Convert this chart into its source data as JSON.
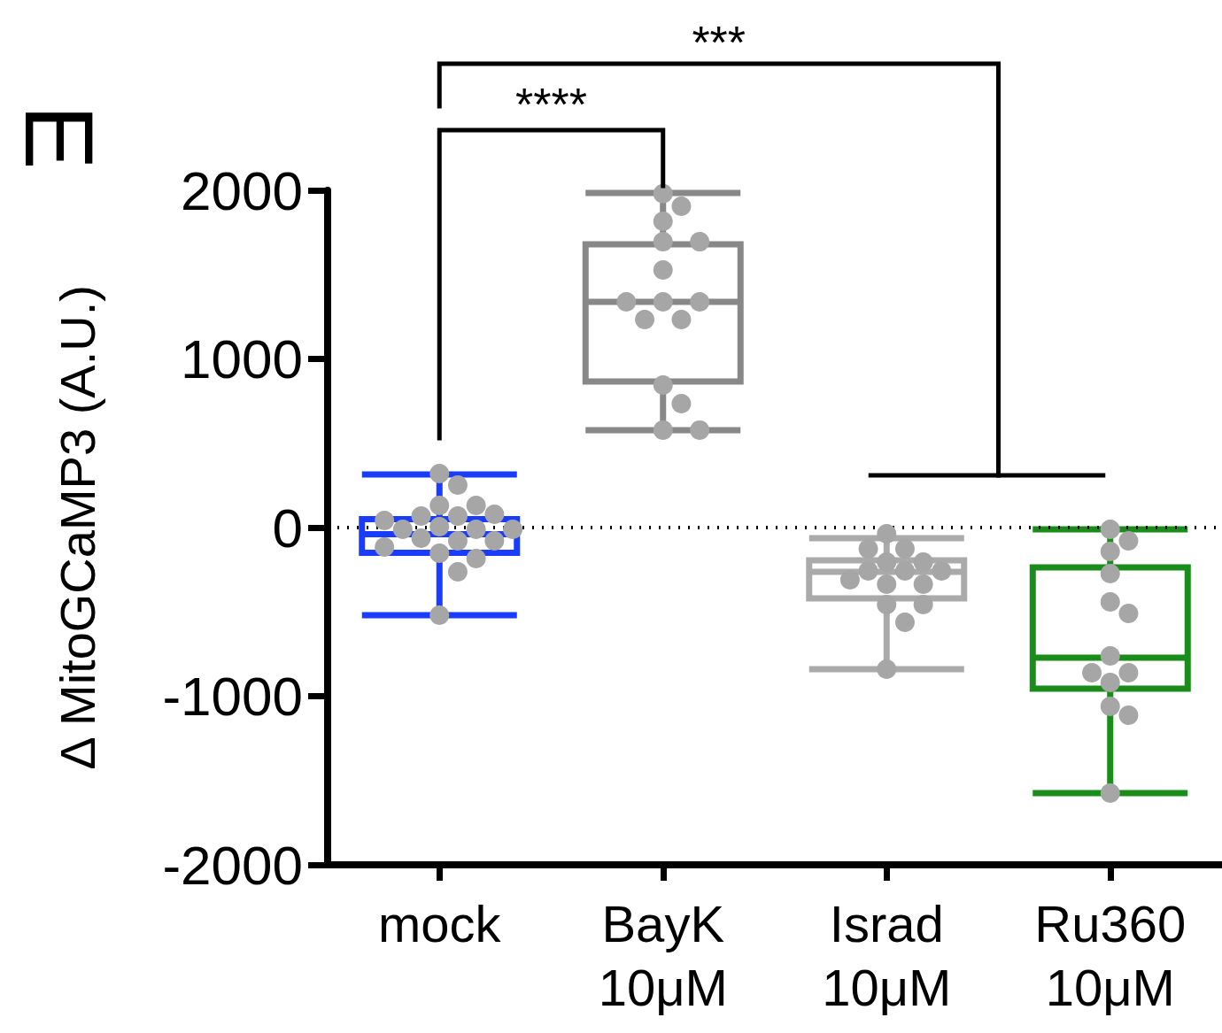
{
  "chart_data": {
    "type": "box",
    "ylabel": "Δ MitoGCaMP3 (A.U.)",
    "categories": [
      "mock",
      "BayK\n10μM",
      "Israd\n10μM",
      "Ru360\n10μM"
    ],
    "ylim": [
      -2000,
      2000
    ],
    "yticks": [
      -2000,
      -1000,
      0,
      1000,
      2000
    ],
    "grid": false,
    "series": [
      {
        "type": "box",
        "colors": [
          "#1a3cff",
          "#888888",
          "#aaaaaa",
          "#1a8c1a"
        ],
        "boxes": [
          {
            "low": -520,
            "q1": -150,
            "median": -40,
            "q3": 50,
            "high": 315
          },
          {
            "low": 578,
            "q1": 866,
            "median": 1339,
            "q3": 1680,
            "high": 1984
          },
          {
            "low": -840,
            "q1": -420,
            "median": -262,
            "q3": -194,
            "high": -63
          },
          {
            "low": -1575,
            "q1": -955,
            "median": -772,
            "q3": -236,
            "high": -10
          }
        ]
      },
      {
        "type": "scatter",
        "color": "#a6a6a6",
        "marker": "circle",
        "x": [
          "mock",
          "mock",
          "mock",
          "mock",
          "mock",
          "mock",
          "mock",
          "mock",
          "mock",
          "mock",
          "mock",
          "mock",
          "mock",
          "mock",
          "mock",
          "mock",
          "mock",
          "mock",
          "mock",
          "mock",
          "BayK\n10μM",
          "BayK\n10μM",
          "BayK\n10μM",
          "BayK\n10μM",
          "BayK\n10μM",
          "BayK\n10μM",
          "BayK\n10μM",
          "BayK\n10μM",
          "BayK\n10μM",
          "BayK\n10μM",
          "BayK\n10μM",
          "BayK\n10μM",
          "BayK\n10μM",
          "BayK\n10μM",
          "BayK\n10μM",
          "Israd\n10μM",
          "Israd\n10μM",
          "Israd\n10μM",
          "Israd\n10μM",
          "Israd\n10μM",
          "Israd\n10μM",
          "Israd\n10μM",
          "Israd\n10μM",
          "Israd\n10μM",
          "Israd\n10μM",
          "Israd\n10μM",
          "Israd\n10μM",
          "Israd\n10μM",
          "Israd\n10μM",
          "Israd\n10μM",
          "Ru360\n10μM",
          "Ru360\n10μM",
          "Ru360\n10μM",
          "Ru360\n10μM",
          "Ru360\n10μM",
          "Ru360\n10μM",
          "Ru360\n10μM",
          "Ru360\n10μM",
          "Ru360\n10μM",
          "Ru360\n10μM",
          "Ru360\n10μM",
          "Ru360\n10μM",
          "Ru360\n10μM"
        ],
        "values": [
          320,
          252,
          131,
          131,
          68,
          68,
          79,
          42,
          5,
          -10,
          -10,
          -10,
          -79,
          -63,
          -79,
          -152,
          -184,
          -115,
          -262,
          -520,
          1980,
          1905,
          1816,
          1695,
          1695,
          1528,
          1339,
          1339,
          1339,
          1234,
          1234,
          845,
          735,
          578,
          578,
          -37,
          -126,
          -126,
          -205,
          -205,
          -257,
          -257,
          -257,
          -310,
          -336,
          -336,
          -457,
          -457,
          -562,
          -840,
          -10,
          -79,
          -142,
          -273,
          -441,
          -509,
          -761,
          -861,
          -861,
          -919,
          -1060,
          -1113,
          -1575
        ]
      }
    ],
    "ref_lines": [
      {
        "axis": "y",
        "value": 0,
        "color": "#000000",
        "line_style": "dotted"
      }
    ],
    "annotations": [
      "E",
      "***",
      "****"
    ]
  }
}
